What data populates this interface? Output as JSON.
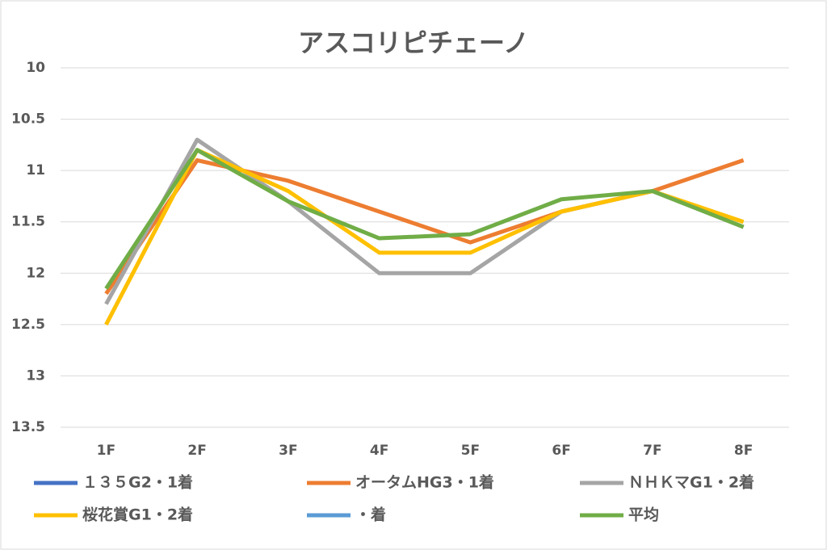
{
  "chart_data": {
    "type": "line",
    "title": "アスコリピチェーノ",
    "categories": [
      "1F",
      "2F",
      "3F",
      "4F",
      "5F",
      "6F",
      "7F",
      "8F"
    ],
    "series": [
      {
        "name": "１３５G2・1着",
        "color": "#4472c4",
        "values": [
          null,
          null,
          null,
          null,
          null,
          null,
          null,
          null
        ]
      },
      {
        "name": "オータムHG3・1着",
        "color": "#ed7d31",
        "values": [
          12.2,
          10.9,
          11.1,
          11.4,
          11.7,
          11.4,
          11.2,
          10.9
        ]
      },
      {
        "name": "ＮＨＫマG1・2着",
        "color": "#a5a5a5",
        "values": [
          12.3,
          10.7,
          11.3,
          12.0,
          12.0,
          11.4,
          11.2,
          11.55
        ]
      },
      {
        "name": "桜花賞G1・2着",
        "color": "#ffc000",
        "values": [
          12.5,
          10.8,
          11.2,
          11.8,
          11.8,
          11.4,
          11.2,
          11.5
        ]
      },
      {
        "name": "・着",
        "color": "#5b9bd5",
        "values": [
          null,
          null,
          null,
          null,
          null,
          null,
          null,
          null
        ]
      },
      {
        "name": "平均",
        "color": "#70ad47",
        "values": [
          12.15,
          10.8,
          11.3,
          11.66,
          11.62,
          11.28,
          11.2,
          11.55
        ]
      }
    ],
    "ylim": [
      10,
      13.5
    ],
    "y_inverted": true,
    "yticks": [
      10,
      10.5,
      11,
      11.5,
      12,
      12.5,
      13,
      13.5
    ],
    "grid": true,
    "legend": "bottom"
  }
}
